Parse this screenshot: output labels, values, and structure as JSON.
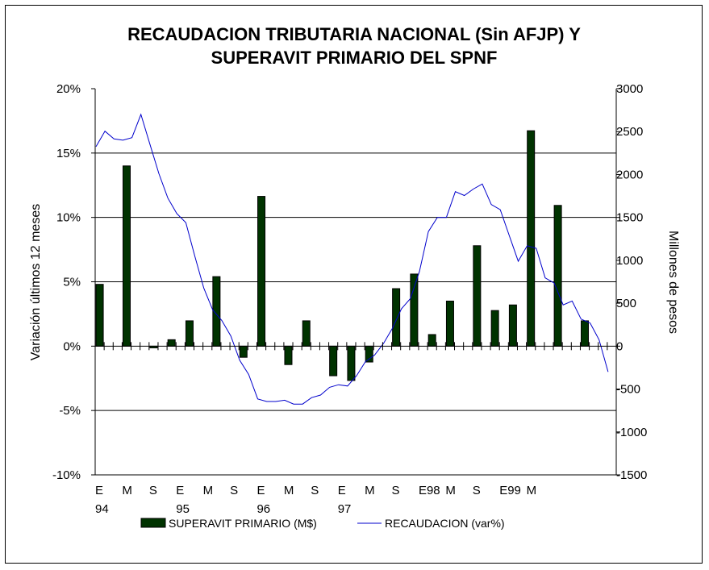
{
  "chart_data": {
    "type": "bar+line",
    "title_line1": "RECAUDACION TRIBUTARIA NACIONAL (Sin AFJP) Y",
    "title_line2": "SUPERAVIT PRIMARIO DEL SPNF",
    "ylabel_left": "Variación últimos 12 meses",
    "ylabel_right": "Millones de pesos",
    "ylim_left": [
      -10,
      20
    ],
    "ylim_right": [
      -1500,
      3000
    ],
    "left_ticks": [
      "20%",
      "15%",
      "10%",
      "5%",
      "0%",
      "-5%",
      "-10%"
    ],
    "right_ticks": [
      "3000",
      "2500",
      "2000",
      "1500",
      "1000",
      "500",
      "0",
      "-500",
      "-1000",
      "-1500"
    ],
    "grid_left_values": [
      15,
      10,
      5,
      -5
    ],
    "x_months": 58,
    "x_labels": [
      {
        "month": 0,
        "line1": "E",
        "line2": "94"
      },
      {
        "month": 3,
        "line1": "M",
        "line2": ""
      },
      {
        "month": 6,
        "line1": "S",
        "line2": ""
      },
      {
        "month": 9,
        "line1": "E",
        "line2": "95"
      },
      {
        "month": 12,
        "line1": "M",
        "line2": ""
      },
      {
        "month": 15,
        "line1": "S",
        "line2": ""
      },
      {
        "month": 18,
        "line1": "E",
        "line2": "96"
      },
      {
        "month": 21,
        "line1": "M",
        "line2": ""
      },
      {
        "month": 24,
        "line1": "S",
        "line2": ""
      },
      {
        "month": 27,
        "line1": "E",
        "line2": "97"
      },
      {
        "month": 30,
        "line1": "M",
        "line2": ""
      },
      {
        "month": 33,
        "line1": "S",
        "line2": ""
      },
      {
        "month": 36,
        "line1": "E98",
        "line2": ""
      },
      {
        "month": 39,
        "line1": "M",
        "line2": ""
      },
      {
        "month": 42,
        "line1": "S",
        "line2": ""
      },
      {
        "month": 45,
        "line1": "E99",
        "line2": ""
      },
      {
        "month": 48,
        "line1": "M",
        "line2": ""
      }
    ],
    "series": [
      {
        "name": "SUPERAVIT PRIMARIO (M$)",
        "type": "bar",
        "axis": "right",
        "color": "#003300",
        "points": [
          {
            "month": 0,
            "value": 720
          },
          {
            "month": 3,
            "value": 2100
          },
          {
            "month": 6,
            "value": -20
          },
          {
            "month": 8,
            "value": 75
          },
          {
            "month": 10,
            "value": 295
          },
          {
            "month": 13,
            "value": 810
          },
          {
            "month": 16,
            "value": -130
          },
          {
            "month": 18,
            "value": 1745
          },
          {
            "month": 21,
            "value": -215
          },
          {
            "month": 23,
            "value": 295
          },
          {
            "month": 26,
            "value": -345
          },
          {
            "month": 28,
            "value": -400
          },
          {
            "month": 30,
            "value": -185
          },
          {
            "month": 33,
            "value": 670
          },
          {
            "month": 35,
            "value": 840
          },
          {
            "month": 37,
            "value": 135
          },
          {
            "month": 39,
            "value": 525
          },
          {
            "month": 42,
            "value": 1170
          },
          {
            "month": 44,
            "value": 415
          },
          {
            "month": 46,
            "value": 480
          },
          {
            "month": 48,
            "value": 2510
          },
          {
            "month": 51,
            "value": 1640
          },
          {
            "month": 54,
            "value": 295
          }
        ]
      },
      {
        "name": "RECAUDACION (var%)",
        "type": "line",
        "axis": "left",
        "color": "#0000cc",
        "values": [
          15.5,
          16.7,
          16.1,
          16.0,
          16.2,
          18.0,
          15.7,
          13.4,
          11.5,
          10.3,
          9.6,
          7.0,
          4.5,
          2.8,
          2.0,
          0.8,
          -1.1,
          -2.2,
          -4.1,
          -4.3,
          -4.3,
          -4.2,
          -4.5,
          -4.5,
          -4.0,
          -3.8,
          -3.2,
          -3.0,
          -3.1,
          -2.3,
          -1.2,
          -0.7,
          0.2,
          1.4,
          2.9,
          3.7,
          5.8,
          8.9,
          10.0,
          10.0,
          12.0,
          11.7,
          12.2,
          12.6,
          11.0,
          10.6,
          8.6,
          6.6,
          7.8,
          7.6,
          5.3,
          4.9,
          3.2,
          3.5,
          2.1,
          1.8,
          0.5,
          -2.0
        ]
      }
    ]
  }
}
